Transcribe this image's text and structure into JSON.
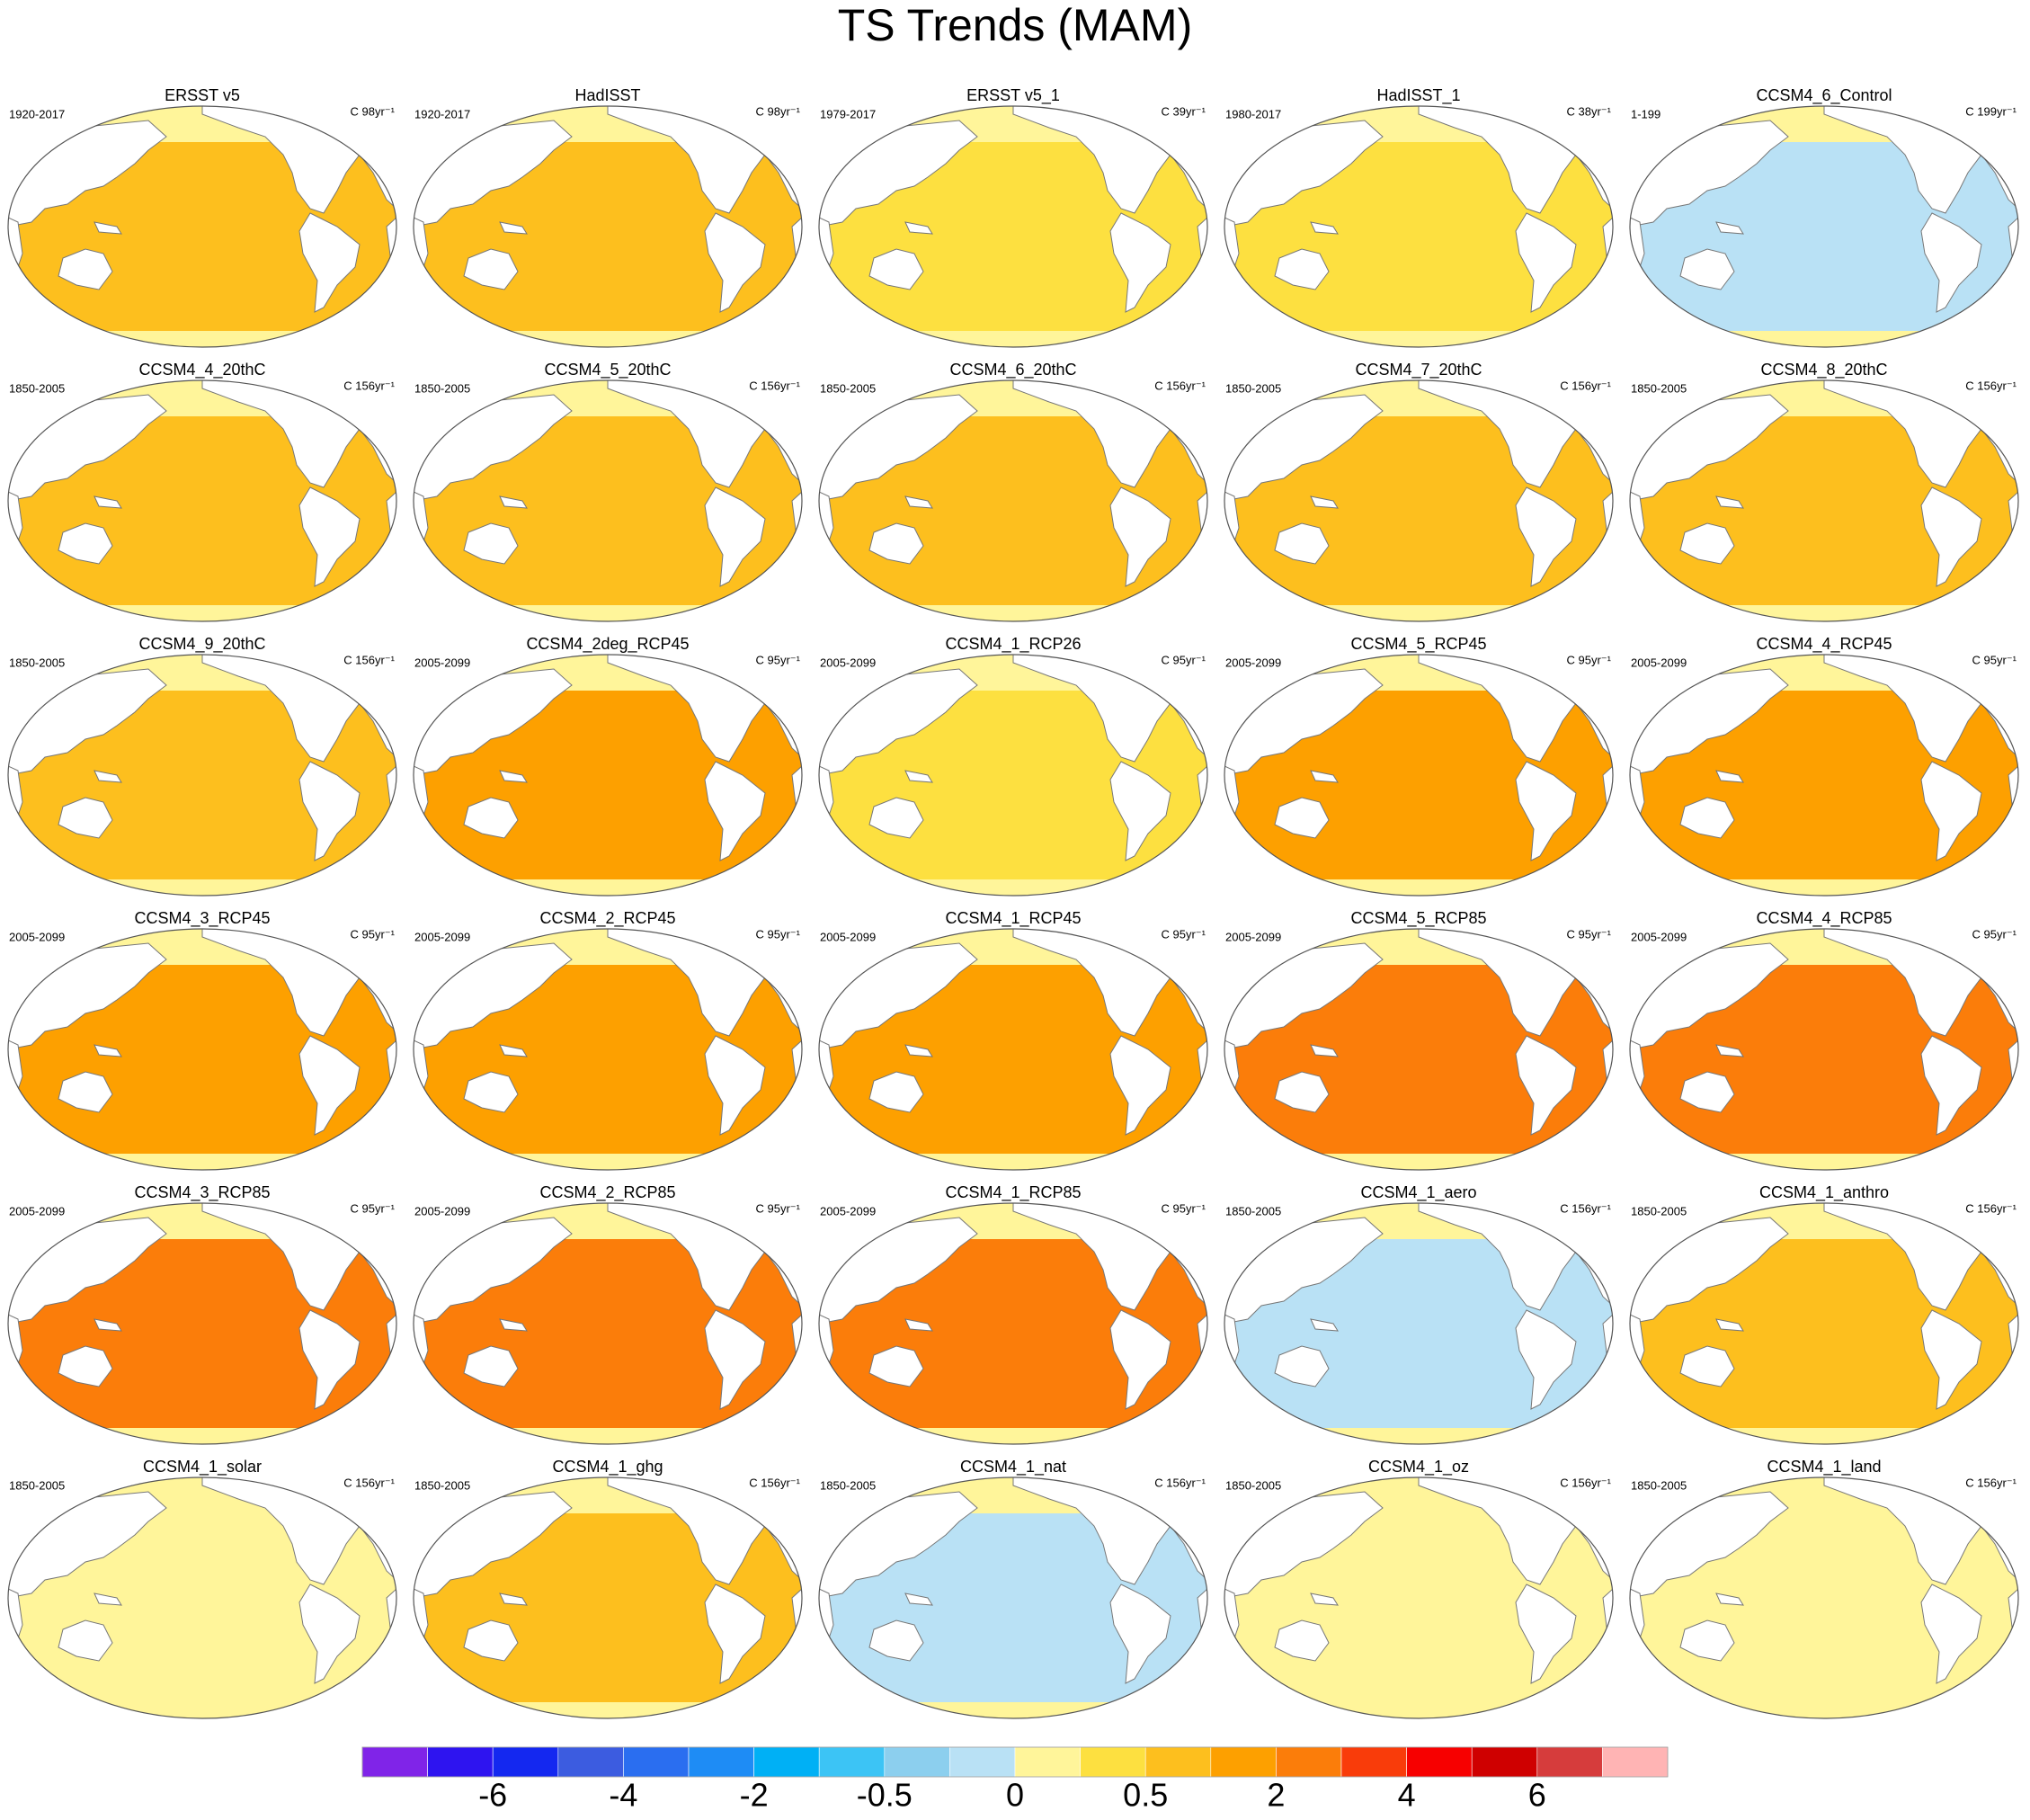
{
  "title": "TS Trends (MAM)",
  "panels": [
    {
      "title": "ERSST v5",
      "period": "1920-2017",
      "units": "C 98yr⁻¹",
      "color": "#fdbf1e"
    },
    {
      "title": "HadISST",
      "period": "1920-2017",
      "units": "C 98yr⁻¹",
      "color": "#fdbf1e"
    },
    {
      "title": "ERSST v5_1",
      "period": "1979-2017",
      "units": "C 39yr⁻¹",
      "color": "#fde040"
    },
    {
      "title": "HadISST_1",
      "period": "1980-2017",
      "units": "C 38yr⁻¹",
      "color": "#fde040"
    },
    {
      "title": "CCSM4_6_Control",
      "period": "1-199",
      "units": "C 199yr⁻¹",
      "color": "#b9e1f5"
    },
    {
      "title": "CCSM4_4_20thC",
      "period": "1850-2005",
      "units": "C 156yr⁻¹",
      "color": "#fdbf1e"
    },
    {
      "title": "CCSM4_5_20thC",
      "period": "1850-2005",
      "units": "C 156yr⁻¹",
      "color": "#fdbf1e"
    },
    {
      "title": "CCSM4_6_20thC",
      "period": "1850-2005",
      "units": "C 156yr⁻¹",
      "color": "#fdbf1e"
    },
    {
      "title": "CCSM4_7_20thC",
      "period": "1850-2005",
      "units": "C 156yr⁻¹",
      "color": "#fdbf1e"
    },
    {
      "title": "CCSM4_8_20thC",
      "period": "1850-2005",
      "units": "C 156yr⁻¹",
      "color": "#fdbf1e"
    },
    {
      "title": "CCSM4_9_20thC",
      "period": "1850-2005",
      "units": "C 156yr⁻¹",
      "color": "#fdbf1e"
    },
    {
      "title": "CCSM4_2deg_RCP45",
      "period": "2005-2099",
      "units": "C 95yr⁻¹",
      "color": "#fda000"
    },
    {
      "title": "CCSM4_1_RCP26",
      "period": "2005-2099",
      "units": "C 95yr⁻¹",
      "color": "#fde040"
    },
    {
      "title": "CCSM4_5_RCP45",
      "period": "2005-2099",
      "units": "C 95yr⁻¹",
      "color": "#fda000"
    },
    {
      "title": "CCSM4_4_RCP45",
      "period": "2005-2099",
      "units": "C 95yr⁻¹",
      "color": "#fda000"
    },
    {
      "title": "CCSM4_3_RCP45",
      "period": "2005-2099",
      "units": "C 95yr⁻¹",
      "color": "#fda000"
    },
    {
      "title": "CCSM4_2_RCP45",
      "period": "2005-2099",
      "units": "C 95yr⁻¹",
      "color": "#fda000"
    },
    {
      "title": "CCSM4_1_RCP45",
      "period": "2005-2099",
      "units": "C 95yr⁻¹",
      "color": "#fda000"
    },
    {
      "title": "CCSM4_5_RCP85",
      "period": "2005-2099",
      "units": "C 95yr⁻¹",
      "color": "#fb7d0a"
    },
    {
      "title": "CCSM4_4_RCP85",
      "period": "2005-2099",
      "units": "C 95yr⁻¹",
      "color": "#fb7d0a"
    },
    {
      "title": "CCSM4_3_RCP85",
      "period": "2005-2099",
      "units": "C 95yr⁻¹",
      "color": "#fb7d0a"
    },
    {
      "title": "CCSM4_2_RCP85",
      "period": "2005-2099",
      "units": "C 95yr⁻¹",
      "color": "#fb7d0a"
    },
    {
      "title": "CCSM4_1_RCP85",
      "period": "2005-2099",
      "units": "C 95yr⁻¹",
      "color": "#fb7d0a"
    },
    {
      "title": "CCSM4_1_aero",
      "period": "1850-2005",
      "units": "C 156yr⁻¹",
      "color": "#b9e1f5"
    },
    {
      "title": "CCSM4_1_anthro",
      "period": "1850-2005",
      "units": "C 156yr⁻¹",
      "color": "#fdbf1e"
    },
    {
      "title": "CCSM4_1_solar",
      "period": "1850-2005",
      "units": "C 156yr⁻¹",
      "color": "#fff59a"
    },
    {
      "title": "CCSM4_1_ghg",
      "period": "1850-2005",
      "units": "C 156yr⁻¹",
      "color": "#fdbf1e"
    },
    {
      "title": "CCSM4_1_nat",
      "period": "1850-2005",
      "units": "C 156yr⁻¹",
      "color": "#b9e1f5"
    },
    {
      "title": "CCSM4_1_oz",
      "period": "1850-2005",
      "units": "C 156yr⁻¹",
      "color": "#fff59a"
    },
    {
      "title": "CCSM4_1_land",
      "period": "1850-2005",
      "units": "C 156yr⁻¹",
      "color": "#fff59a"
    }
  ],
  "colorbar": {
    "colors": [
      "#8024e8",
      "#2e14f0",
      "#1428f0",
      "#3c5ce0",
      "#2a6ef0",
      "#1e8cf5",
      "#00b0f5",
      "#3cc4f5",
      "#8ccfee",
      "#b9e1f5",
      "#fff59a",
      "#fde040",
      "#fdbf1e",
      "#fda000",
      "#fb7d0a",
      "#f93c0a",
      "#f70000",
      "#cf0000",
      "#d63c3c",
      "#ffb4b4"
    ],
    "ticks": [
      -6,
      -4,
      -2,
      -0.5,
      0,
      0.5,
      2,
      4,
      6
    ]
  }
}
